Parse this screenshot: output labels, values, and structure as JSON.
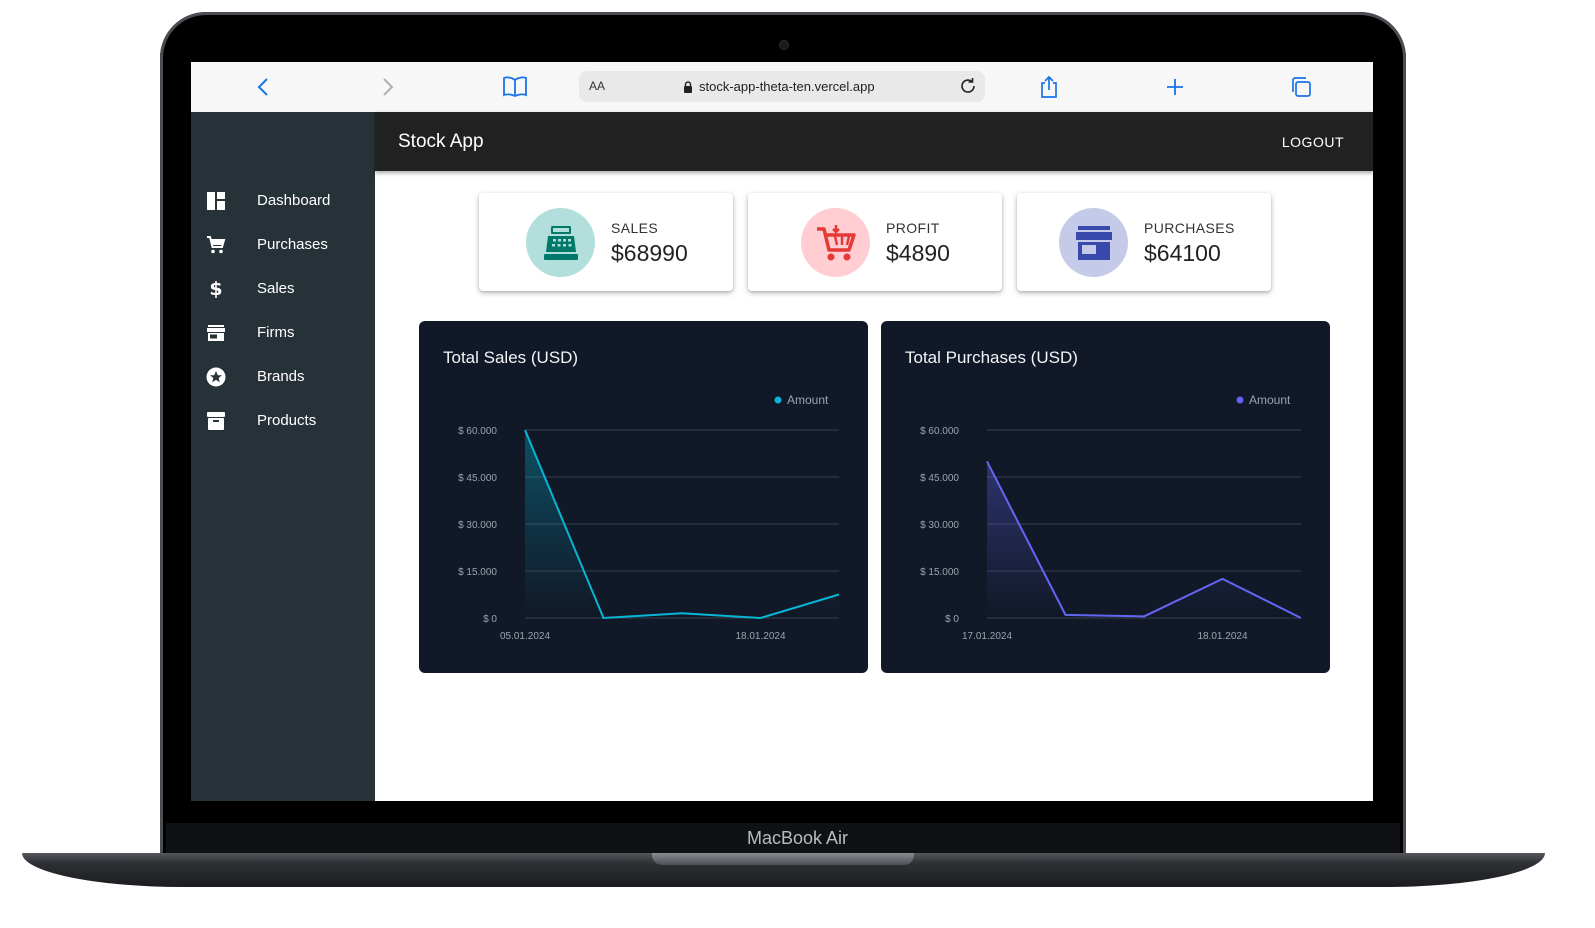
{
  "device": {
    "label": "MacBook Air"
  },
  "browser": {
    "aa_label": "AA",
    "url": "stock-app-theta-ten.vercel.app",
    "icons": [
      "chevron-left-icon",
      "chevron-right-icon",
      "book-icon",
      "lock-icon",
      "reload-icon",
      "share-icon",
      "plus-icon",
      "tabs-icon"
    ]
  },
  "appbar": {
    "title": "Stock App",
    "logout": "LOGOUT"
  },
  "sidebar": {
    "items": [
      {
        "label": "Dashboard",
        "icon": "dashboard-icon"
      },
      {
        "label": "Purchases",
        "icon": "cart-icon"
      },
      {
        "label": "Sales",
        "icon": "dollar-icon"
      },
      {
        "label": "Firms",
        "icon": "store-icon"
      },
      {
        "label": "Brands",
        "icon": "star-badge-icon"
      },
      {
        "label": "Products",
        "icon": "archive-icon"
      }
    ]
  },
  "kpis": [
    {
      "label": "SALES",
      "value": "$68990",
      "icon": "cash-register-icon",
      "color": "#00796b",
      "bg": "#b2dfdb"
    },
    {
      "label": "PROFIT",
      "value": "$4890",
      "icon": "shopping-cart-icon",
      "color": "#e53935",
      "bg": "#ffcdd2"
    },
    {
      "label": "PURCHASES",
      "value": "$64100",
      "icon": "store-icon",
      "color": "#3949ab",
      "bg": "#c5cae9"
    }
  ],
  "chart_data": [
    {
      "type": "area",
      "title": "Total Sales (USD)",
      "legend": {
        "label": "Amount",
        "position": "top-right"
      },
      "color": "#06b6d4",
      "x_tick_labels": [
        "05.01.2024",
        "18.01.2024"
      ],
      "y_tick_labels": [
        "$ 60.000",
        "$ 45.000",
        "$ 30.000",
        "$ 15.000",
        "$ 0"
      ],
      "ylim": [
        0,
        60000
      ],
      "values": [
        60000,
        0,
        1500,
        0,
        7500
      ],
      "grid": true
    },
    {
      "type": "area",
      "title": "Total Purchases (USD)",
      "legend": {
        "label": "Amount",
        "position": "top-right"
      },
      "color": "#6366f1",
      "x_tick_labels": [
        "17.01.2024",
        "18.01.2024"
      ],
      "y_tick_labels": [
        "$ 60.000",
        "$ 45.000",
        "$ 30.000",
        "$ 15.000",
        "$ 0"
      ],
      "ylim": [
        0,
        60000
      ],
      "values": [
        50000,
        1000,
        500,
        12500,
        0
      ],
      "grid": true
    }
  ]
}
